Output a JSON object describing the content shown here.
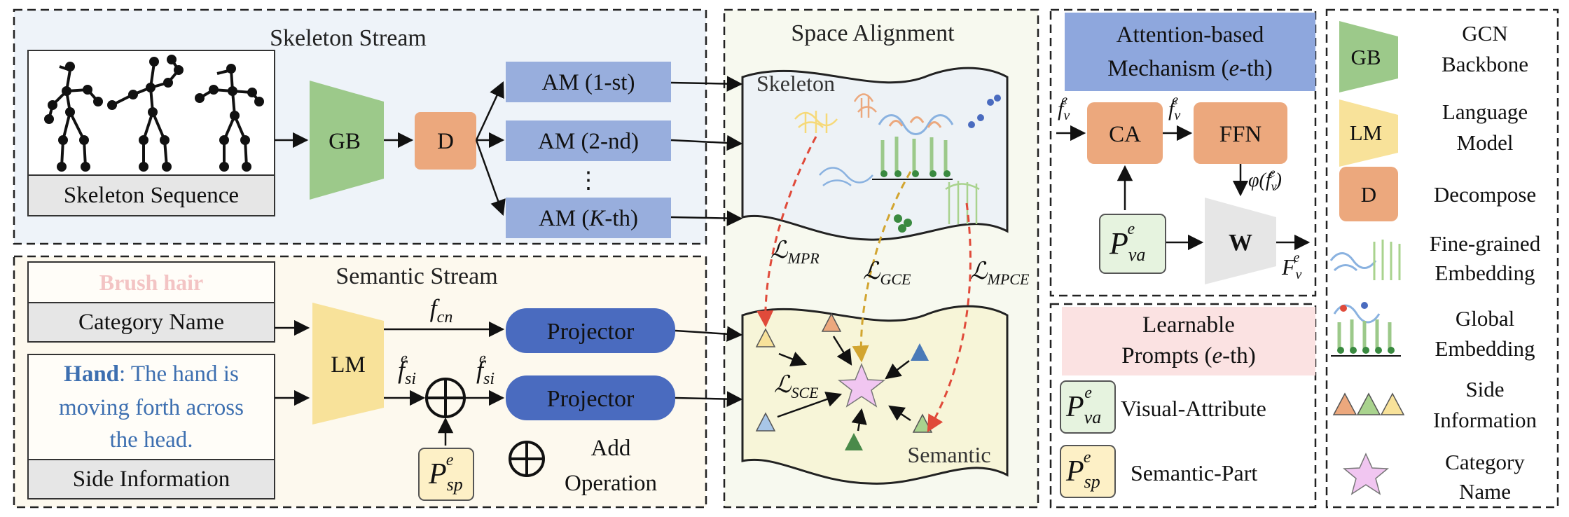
{
  "skeleton_stream": {
    "title": "Skeleton Stream",
    "input_label": "Skeleton Sequence",
    "gb": "GB",
    "d": "D",
    "am_1": "AM (1-st)",
    "am_2": "AM (2-nd)",
    "am_dots": "⋮",
    "am_k_prefix": "AM (",
    "am_k_var": "K",
    "am_k_suffix": "-th)"
  },
  "semantic_stream": {
    "title": "Semantic Stream",
    "category_example": "Brush hair",
    "category_label": "Category Name",
    "side_bold": "Hand",
    "side_line1": ": The hand is",
    "side_line2": "moving forth across",
    "side_line3": "the head.",
    "side_label": "Side Information",
    "lm": "LM",
    "f_cn": "f",
    "f_cn_sub": "cn",
    "f_si": "f",
    "f_si_sub": "si",
    "f_si_sup": "e",
    "projector_1": "Projector",
    "projector_2": "Projector",
    "p_sp": "P",
    "p_sp_sub": "sp",
    "p_sp_sup": "e",
    "add_line1": "Add",
    "add_line2": "Operation"
  },
  "space_alignment": {
    "title": "Space Alignment",
    "skeleton_label": "Skeleton",
    "semantic_label": "Semantic",
    "loss_mpr": "MPR",
    "loss_gce": "GCE",
    "loss_mpce": "MPCE",
    "loss_sce": "SCE",
    "loss_symbol": "ℒ"
  },
  "attention": {
    "title_line1": "Attention-based",
    "title_line2_prefix": "Mechanism (",
    "title_line2_var": "e",
    "title_line2_suffix": "-th)",
    "ca": "CA",
    "ffn": "FFN",
    "w": "W",
    "fv": "f",
    "fv_sub": "v",
    "fv_sup": "e",
    "phi": "φ(",
    "phi_close": ")",
    "Fv": "F",
    "p_va": "P",
    "p_va_sub": "va",
    "p_va_sup": "e"
  },
  "prompts": {
    "title_line1": "Learnable",
    "title_line2_prefix": "Prompts (",
    "title_line2_var": "e",
    "title_line2_suffix": "-th)",
    "visual_attribute": "Visual-Attribute",
    "semantic_part": "Semantic-Part"
  },
  "legend": {
    "gb": "GB",
    "gb_text1": "GCN",
    "gb_text2": "Backbone",
    "lm": "LM",
    "lm_text1": "Language",
    "lm_text2": "Model",
    "d": "D",
    "d_text": "Decompose",
    "fine_text1": "Fine-grained",
    "fine_text2": "Embedding",
    "global_text1": "Global",
    "global_text2": "Embedding",
    "side_text1": "Side",
    "side_text2": "Information",
    "cat_text1": "Category",
    "cat_text2": "Name"
  },
  "colors": {
    "skeleton_bg": "#eef3f9",
    "semantic_bg": "#fdf9ee",
    "alignment_bg": "#f7f9ef",
    "gb_green": "#9cc98a",
    "lm_yellow": "#f8e29a",
    "d_orange": "#eca87d",
    "am_blue": "#98aedd",
    "projector_blue": "#4a6bbf",
    "attn_header": "#8ea7dd",
    "prompt_header": "#fbe2e2",
    "pva_green": "#e6f3df",
    "psp_yellow": "#fdf0c6",
    "loss_red": "#e04a3a",
    "loss_gold": "#d2a530",
    "star_pink": "#f1c6f1"
  }
}
